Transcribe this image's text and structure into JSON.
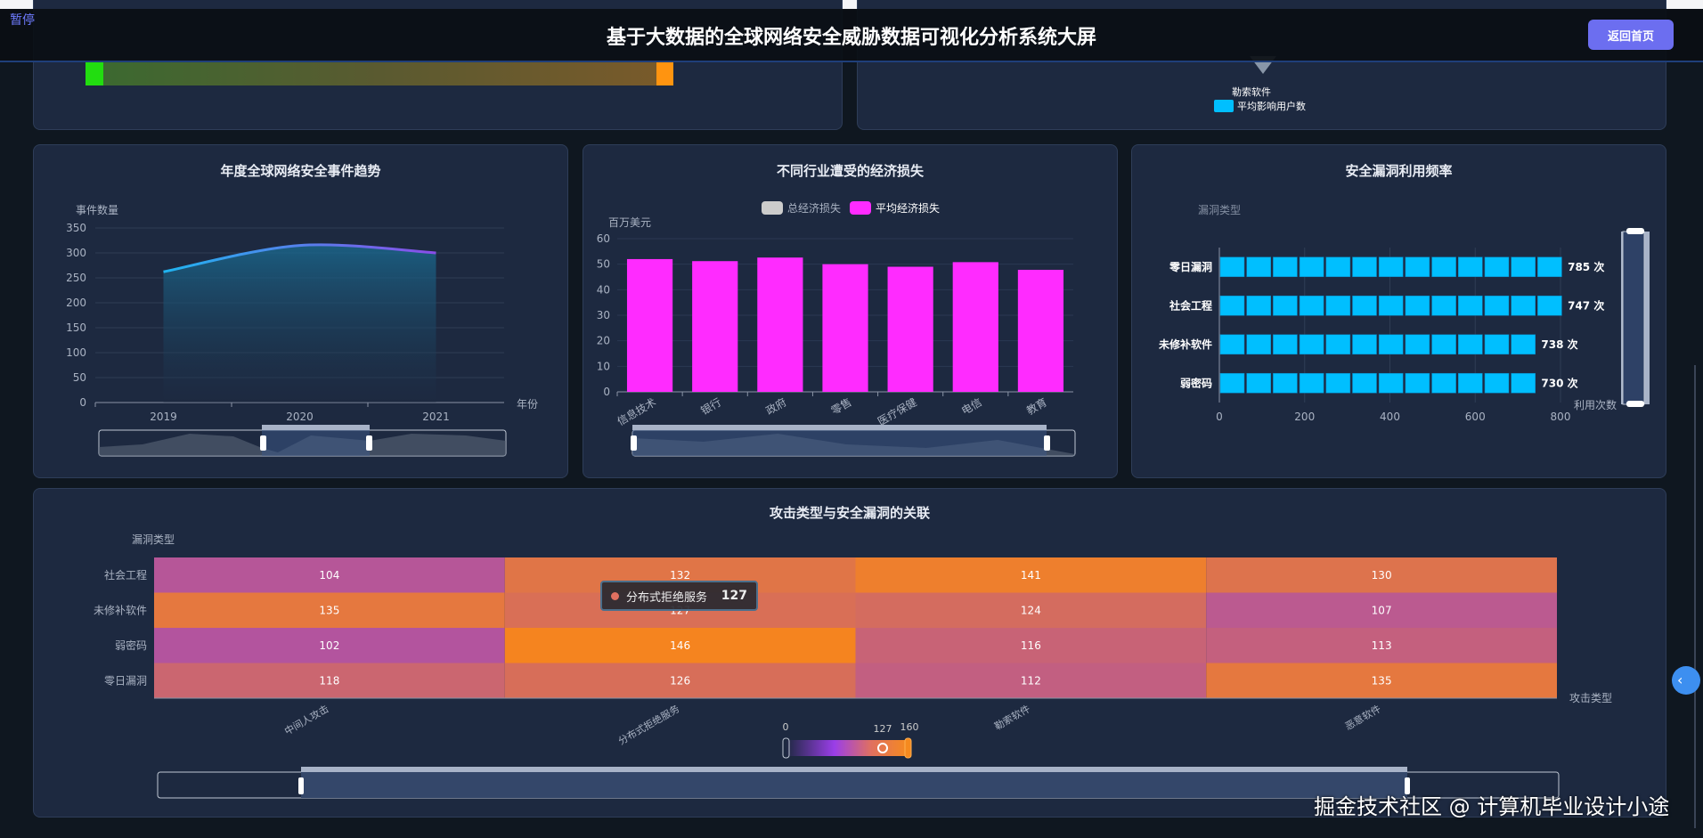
{
  "header": {
    "title": "基于大数据的全球网络安全威胁数据可视化分析系统大屏",
    "pause_label": "暂停",
    "home_button": "返回首页"
  },
  "top_right_panel": {
    "category_label": "勒索软件",
    "legend_label": "平均影响用户数",
    "legend_color": "#00bfff"
  },
  "watermark": "掘金技术社区 @ 计算机毕业设计小途",
  "chart_data": [
    {
      "type": "area",
      "title": "年度全球网络安全事件趋势",
      "ylabel": "事件数量",
      "xlabel": "年份",
      "categories": [
        "2019",
        "2020",
        "2021"
      ],
      "values": [
        262,
        315,
        300
      ],
      "ylim": [
        0,
        350
      ],
      "yticks": [
        0,
        50,
        100,
        150,
        200,
        250,
        300,
        350
      ],
      "grid": true,
      "colors": [
        "#1fb5f0",
        "#8a4de8"
      ]
    },
    {
      "type": "bar",
      "title": "不同行业遭受的经济损失",
      "ylabel": "百万美元",
      "legend": [
        {
          "name": "总经济损失",
          "color": "#cccccc"
        },
        {
          "name": "平均经济损失",
          "color": "#ff2bff"
        }
      ],
      "categories": [
        "信息技术",
        "银行",
        "政府",
        "零售",
        "医疗保健",
        "电信",
        "教育"
      ],
      "series": [
        {
          "name": "平均经济损失",
          "values": [
            52,
            51.2,
            52.6,
            50,
            49,
            50.8,
            47.8
          ]
        }
      ],
      "ylim": [
        0,
        60
      ],
      "yticks": [
        0,
        10,
        20,
        30,
        40,
        50,
        60
      ],
      "grid": true
    },
    {
      "type": "bar",
      "orientation": "horizontal",
      "title": "安全漏洞利用频率",
      "ylabel": "漏洞类型",
      "xlabel": "利用次数",
      "categories": [
        "零日漏洞",
        "社会工程",
        "未修补软件",
        "弱密码"
      ],
      "values": [
        785,
        747,
        738,
        730
      ],
      "value_suffix": " 次",
      "xlim": [
        0,
        800
      ],
      "xticks": [
        0,
        200,
        400,
        600,
        800
      ],
      "color": "#00bfff"
    },
    {
      "type": "heatmap",
      "title": "攻击类型与安全漏洞的关联",
      "ylabel": "漏洞类型",
      "xlabel": "攻击类型",
      "x": [
        "中间人攻击",
        "分布式拒绝服务",
        "勒索软件",
        "恶意软件"
      ],
      "y": [
        "社会工程",
        "未修补软件",
        "弱密码",
        "零日漏洞"
      ],
      "values": [
        [
          104,
          132,
          141,
          130
        ],
        [
          135,
          127,
          124,
          107
        ],
        [
          102,
          146,
          116,
          113
        ],
        [
          118,
          126,
          112,
          135
        ]
      ],
      "visual_map": {
        "min": "0",
        "max": "160",
        "selected": "127"
      },
      "tooltip": {
        "label": "分布式拒绝服务",
        "value": "127"
      }
    }
  ]
}
